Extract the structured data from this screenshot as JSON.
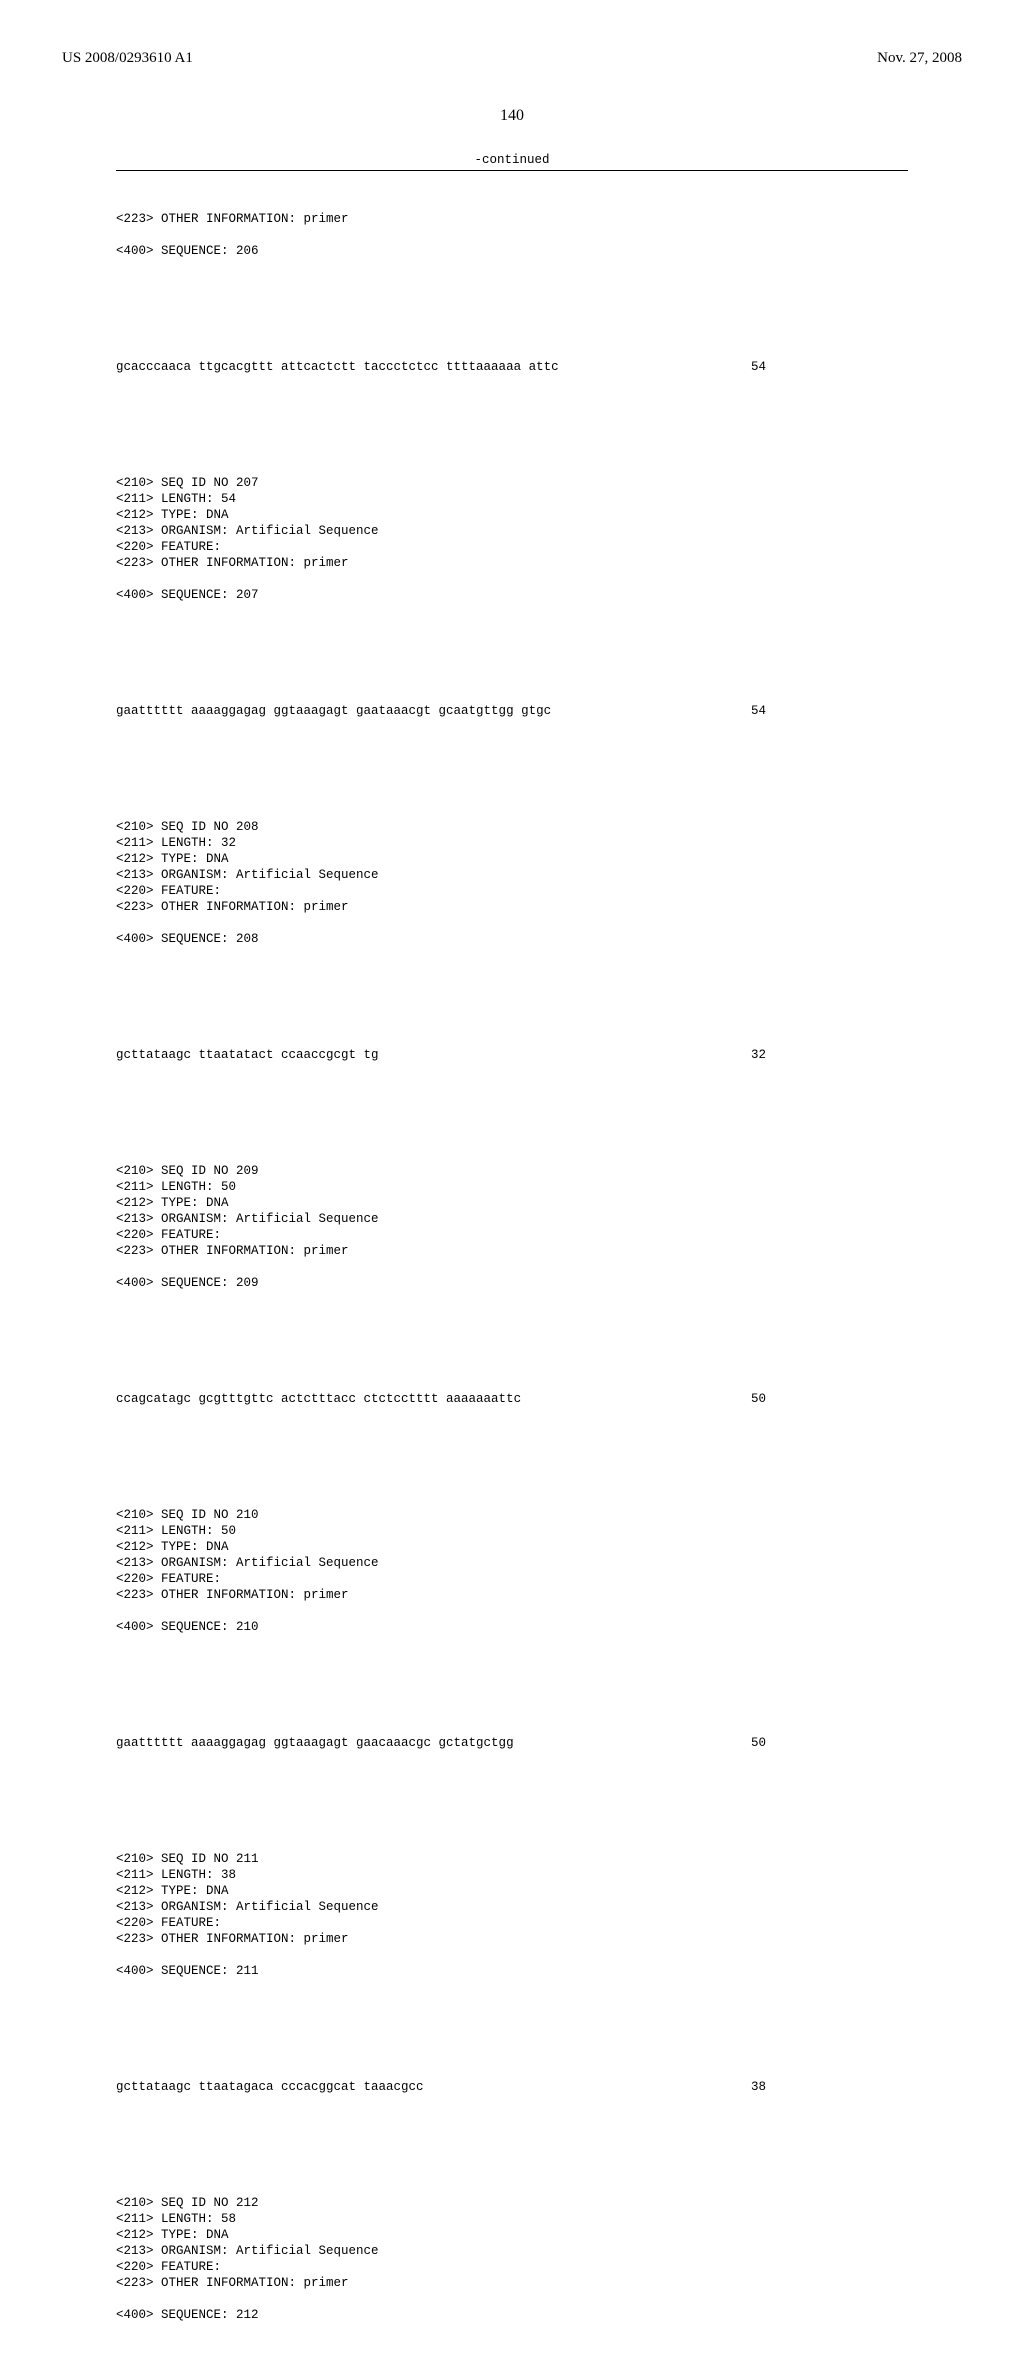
{
  "header": {
    "publication_number": "US 2008/0293610 A1",
    "publication_date": "Nov. 27, 2008"
  },
  "page_number": "140",
  "continued_label": "-continued",
  "entries": [
    {
      "meta": "<223> OTHER INFORMATION: primer\n\n<400> SEQUENCE: 206",
      "sequence": "gcacccaaca ttgcacgttt attcactctt taccctctcc ttttaaaaaa attc",
      "length": "54"
    },
    {
      "meta": "<210> SEQ ID NO 207\n<211> LENGTH: 54\n<212> TYPE: DNA\n<213> ORGANISM: Artificial Sequence\n<220> FEATURE:\n<223> OTHER INFORMATION: primer\n\n<400> SEQUENCE: 207",
      "sequence": "gaatttttt aaaaggagag ggtaaagagt gaataaacgt gcaatgttgg gtgc",
      "length": "54"
    },
    {
      "meta": "<210> SEQ ID NO 208\n<211> LENGTH: 32\n<212> TYPE: DNA\n<213> ORGANISM: Artificial Sequence\n<220> FEATURE:\n<223> OTHER INFORMATION: primer\n\n<400> SEQUENCE: 208",
      "sequence": "gcttataagc ttaatatact ccaaccgcgt tg",
      "length": "32"
    },
    {
      "meta": "<210> SEQ ID NO 209\n<211> LENGTH: 50\n<212> TYPE: DNA\n<213> ORGANISM: Artificial Sequence\n<220> FEATURE:\n<223> OTHER INFORMATION: primer\n\n<400> SEQUENCE: 209",
      "sequence": "ccagcatagc gcgtttgttc actctttacc ctctcctttt aaaaaaattc",
      "length": "50"
    },
    {
      "meta": "<210> SEQ ID NO 210\n<211> LENGTH: 50\n<212> TYPE: DNA\n<213> ORGANISM: Artificial Sequence\n<220> FEATURE:\n<223> OTHER INFORMATION: primer\n\n<400> SEQUENCE: 210",
      "sequence": "gaatttttt aaaaggagag ggtaaagagt gaacaaacgc gctatgctgg",
      "length": "50"
    },
    {
      "meta": "<210> SEQ ID NO 211\n<211> LENGTH: 38\n<212> TYPE: DNA\n<213> ORGANISM: Artificial Sequence\n<220> FEATURE:\n<223> OTHER INFORMATION: primer\n\n<400> SEQUENCE: 211",
      "sequence": "gcttataagc ttaatagaca cccacggcat taaacgcc",
      "length": "38"
    },
    {
      "meta": "<210> SEQ ID NO 212\n<211> LENGTH: 58\n<212> TYPE: DNA\n<213> ORGANISM: Artificial Sequence\n<220> FEATURE:\n<223> OTHER INFORMATION: primer\n\n<400> SEQUENCE: 212",
      "sequence": "",
      "length": ""
    }
  ]
}
